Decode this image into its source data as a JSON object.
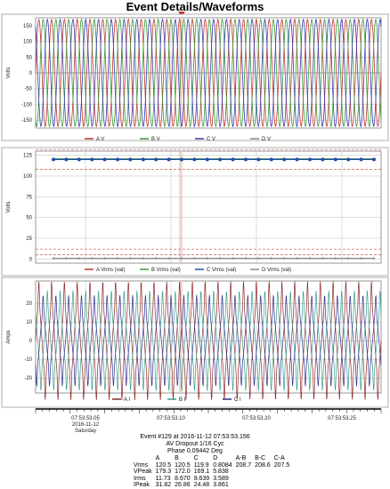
{
  "title": "Event Details/Waveforms",
  "chart_data": [
    {
      "type": "line",
      "ylabel": "Volts",
      "ylim": [
        -175,
        175
      ],
      "yticks": [
        150,
        100,
        50,
        0,
        -50,
        -100,
        -150
      ],
      "waveform": {
        "amplitude": 170,
        "cycles": 27
      },
      "series": [
        {
          "name": "A V",
          "color": "#c0392b",
          "phase_deg": 0
        },
        {
          "name": "B V",
          "color": "#3a9b3a",
          "phase_deg": -120
        },
        {
          "name": "C V",
          "color": "#3a3ab0",
          "phase_deg": 120
        },
        {
          "name": "D V",
          "color": "#888888",
          "constant": 0
        }
      ]
    },
    {
      "type": "line",
      "ylabel": "Volts",
      "ylim": [
        -5,
        130
      ],
      "yticks": [
        125,
        100,
        75,
        50,
        25,
        0
      ],
      "limits": {
        "upper_dashed": [
          132,
          108
        ],
        "lower_dashed": [
          12,
          5
        ]
      },
      "series": [
        {
          "name": "A Vrms (val)",
          "color": "#c0392b",
          "value": 120.5
        },
        {
          "name": "B Vrms (val)",
          "color": "#3a9b3a",
          "value": 120.5
        },
        {
          "name": "C Vrms (val)",
          "color": "#1f4fb4",
          "value": 119.9
        },
        {
          "name": "D Vrms (val)",
          "color": "#888888",
          "value": 0.8084
        }
      ],
      "marker_count": 26
    },
    {
      "type": "line",
      "ylabel": "Amps",
      "ylim": [
        -28,
        32
      ],
      "yticks": [
        20,
        10,
        0,
        -10,
        -20
      ],
      "series": [
        {
          "name": "A I",
          "color": "#8e2a2a",
          "peak": 31.82
        },
        {
          "name": "B I",
          "color": "#3aa08a",
          "peak": 26.86
        },
        {
          "name": "C I",
          "color": "#2f2f8f",
          "peak": 24.48
        }
      ]
    }
  ],
  "time_axis": {
    "ticks": [
      "07:53:53.05",
      "07:53:53.10",
      "07:53:53.20",
      "07:53:53.25"
    ],
    "date": "2016-11-12",
    "day": "Saturday"
  },
  "info": {
    "event_line": "Event #129 at 2016-11-12 07:53:53.156",
    "event_type": "AV Dropout 1/16 Cyc",
    "phase_line": "Phase    0.09442 Deg",
    "columns": [
      "A",
      "B",
      "C",
      "D",
      "A-B",
      "B-C",
      "C-A"
    ],
    "rows": [
      {
        "label": "Vrms",
        "values": [
          "120.5",
          "120.5",
          "119.9",
          "0.8084",
          "208.7",
          "208.6",
          "207.5"
        ]
      },
      {
        "label": "VPeak",
        "values": [
          "179.3",
          "172.0",
          "169.1",
          "5.838",
          "",
          "",
          ""
        ]
      },
      {
        "label": "Irms",
        "values": [
          "11.73",
          "8.670",
          "9.639",
          "3.589",
          "",
          "",
          ""
        ]
      },
      {
        "label": "IPeak",
        "values": [
          "31.82",
          "26.86",
          "24.48",
          "3.861",
          "",
          "",
          ""
        ]
      }
    ]
  }
}
